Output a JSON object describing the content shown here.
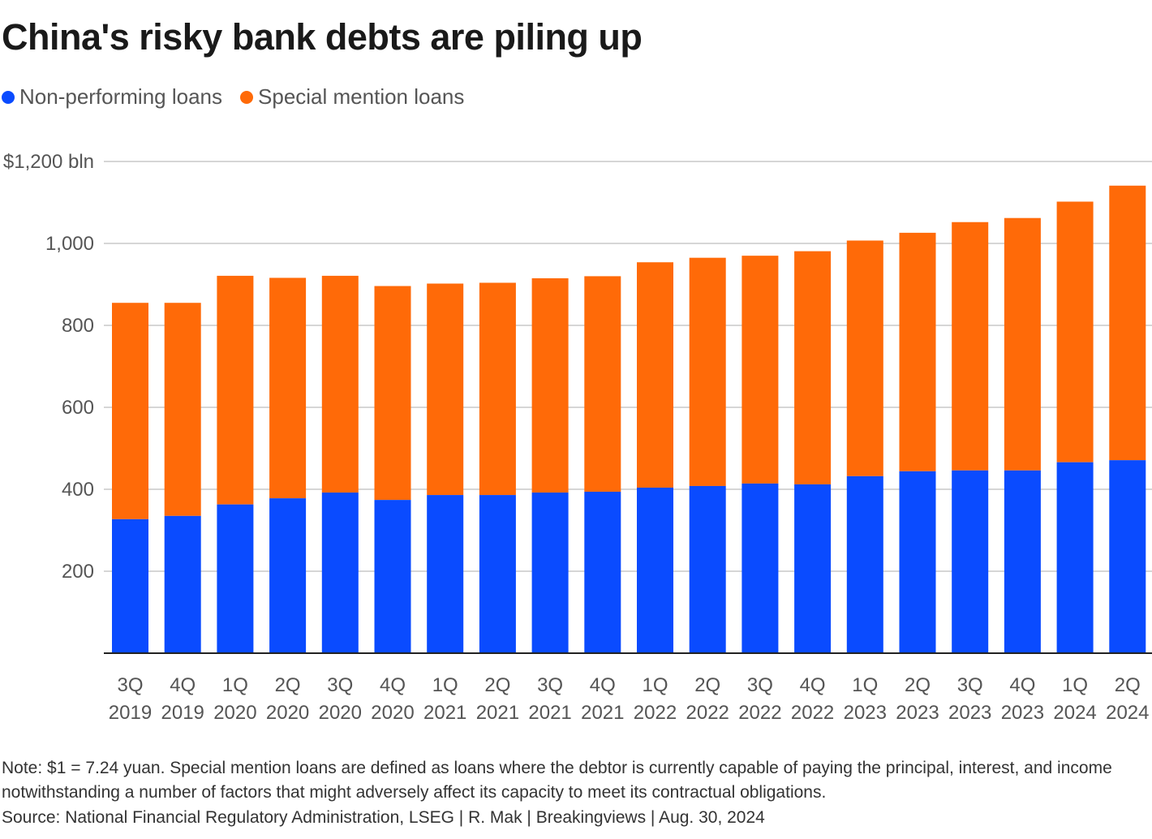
{
  "title": "China's risky bank debts are piling up",
  "legend": [
    {
      "label": "Non-performing loans",
      "color": "#0a4bff"
    },
    {
      "label": "Special mention loans",
      "color": "#ff6a08"
    }
  ],
  "chart_data": {
    "type": "bar",
    "stacked": true,
    "categories": [
      [
        "3Q",
        "2019"
      ],
      [
        "4Q",
        "2019"
      ],
      [
        "1Q",
        "2020"
      ],
      [
        "2Q",
        "2020"
      ],
      [
        "3Q",
        "2020"
      ],
      [
        "4Q",
        "2020"
      ],
      [
        "1Q",
        "2021"
      ],
      [
        "2Q",
        "2021"
      ],
      [
        "3Q",
        "2021"
      ],
      [
        "4Q",
        "2021"
      ],
      [
        "1Q",
        "2022"
      ],
      [
        "2Q",
        "2022"
      ],
      [
        "3Q",
        "2022"
      ],
      [
        "4Q",
        "2022"
      ],
      [
        "1Q",
        "2023"
      ],
      [
        "2Q",
        "2023"
      ],
      [
        "3Q",
        "2023"
      ],
      [
        "4Q",
        "2023"
      ],
      [
        "1Q",
        "2024"
      ],
      [
        "2Q",
        "2024"
      ]
    ],
    "series": [
      {
        "name": "Non-performing loans",
        "color": "#0a4bff",
        "values": [
          327,
          335,
          363,
          378,
          392,
          374,
          386,
          386,
          392,
          394,
          404,
          408,
          414,
          412,
          432,
          444,
          446,
          446,
          466,
          471
        ]
      },
      {
        "name": "Special mention loans",
        "color": "#ff6a08",
        "values": [
          528,
          520,
          558,
          538,
          529,
          522,
          516,
          518,
          523,
          526,
          550,
          557,
          556,
          569,
          575,
          582,
          606,
          616,
          636,
          670
        ]
      }
    ],
    "yticks": [
      {
        "value": 200,
        "label": "200"
      },
      {
        "value": 400,
        "label": "400"
      },
      {
        "value": 600,
        "label": "600"
      },
      {
        "value": 800,
        "label": "800"
      },
      {
        "value": 1000,
        "label": "1,000"
      },
      {
        "value": 1200,
        "label": "$1,200 bln"
      }
    ],
    "ylim": [
      0,
      1200
    ],
    "grid": true
  },
  "note": "Note: $1 = 7.24 yuan. Special mention loans are defined as loans where the debtor is currently capable of paying the principal, interest, and income notwithstanding a number of factors that might adversely affect its capacity to meet its contractual obligations.",
  "source": "Source: National Financial Regulatory Administration, LSEG | R. Mak | Breakingviews | Aug. 30, 2024"
}
